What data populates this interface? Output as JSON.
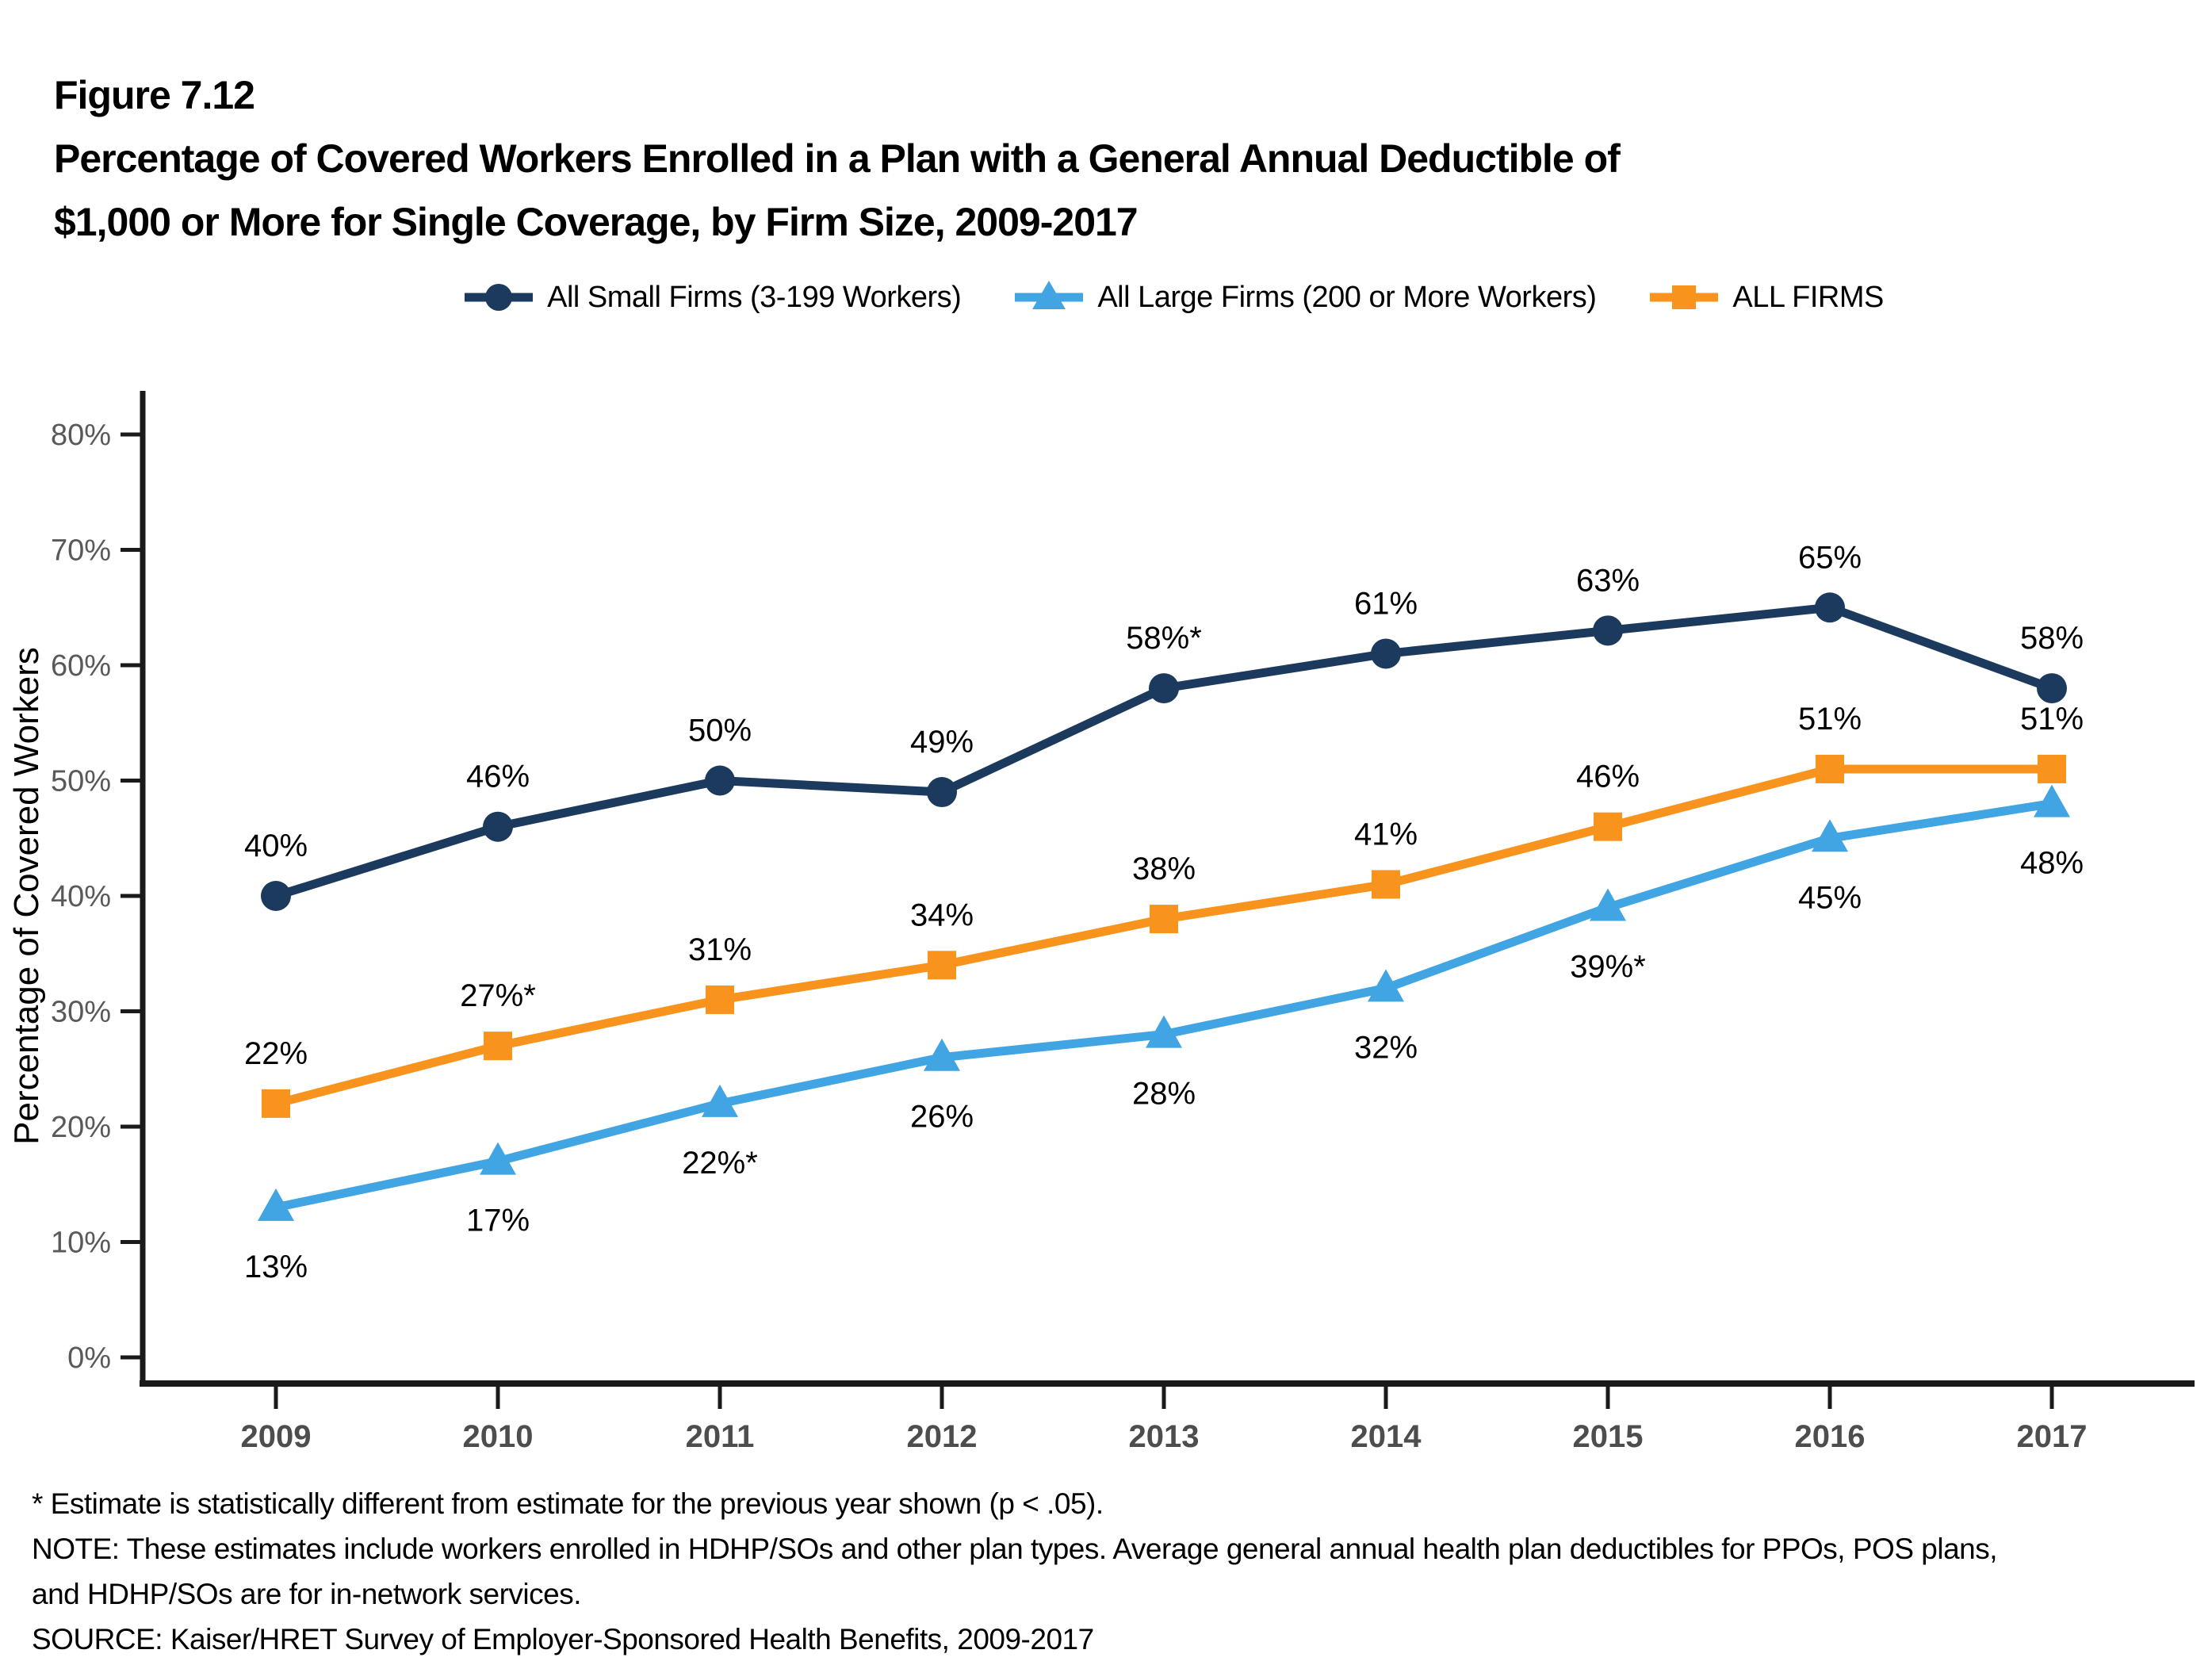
{
  "figure": {
    "label": "Figure 7.12",
    "title_line1": "Percentage of Covered Workers Enrolled in a Plan with a General Annual Deductible of",
    "title_line2": "$1,000 or More for Single Coverage, by Firm Size, 2009-2017"
  },
  "legend": [
    {
      "label": "All Small Firms (3-199 Workers)",
      "marker": "circle",
      "color": "#1b3a5d"
    },
    {
      "label": "All Large Firms (200 or More Workers)",
      "marker": "triangle",
      "color": "#41a4e3"
    },
    {
      "label": "ALL FIRMS",
      "marker": "square",
      "color": "#f8941d"
    }
  ],
  "chart_data": {
    "type": "line",
    "x": [
      2009,
      2010,
      2011,
      2012,
      2013,
      2014,
      2015,
      2016,
      2017
    ],
    "ylabel": "Percentage of Covered Workers",
    "ylim": [
      0,
      80
    ],
    "ytick_step": 10,
    "ytick_suffix": "%",
    "grid": false,
    "legend_position": "top",
    "series": [
      {
        "name": "All Small Firms (3-199 Workers)",
        "color": "#1b3a5d",
        "marker": "circle",
        "values": [
          40,
          46,
          50,
          49,
          58,
          61,
          63,
          65,
          58
        ],
        "labels": [
          "40%",
          "46%",
          "50%",
          "49%",
          "58%*",
          "61%",
          "63%",
          "65%",
          "58%"
        ],
        "label_position": "above"
      },
      {
        "name": "ALL FIRMS",
        "color": "#f8941d",
        "marker": "square",
        "values": [
          22,
          27,
          31,
          34,
          38,
          41,
          46,
          51,
          51
        ],
        "labels": [
          "22%",
          "27%*",
          "31%",
          "34%",
          "38%",
          "41%",
          "46%",
          "51%",
          "51%"
        ],
        "label_position": "above"
      },
      {
        "name": "All Large Firms (200 or More Workers)",
        "color": "#41a4e3",
        "marker": "triangle",
        "values": [
          13,
          17,
          22,
          26,
          28,
          32,
          39,
          45,
          48
        ],
        "labels": [
          "13%",
          "17%",
          "22%*",
          "26%",
          "28%",
          "32%",
          "39%*",
          "45%",
          "48%"
        ],
        "label_position": "below"
      }
    ]
  },
  "footnotes": {
    "asterisk": "* Estimate is statistically different from estimate for the previous year shown (p < .05).",
    "note_line1": "NOTE: These estimates include workers enrolled in HDHP/SOs and other plan types. Average general annual health plan deductibles for PPOs, POS plans,",
    "note_line2": "and HDHP/SOs are for in-network services.",
    "source": "SOURCE: Kaiser/HRET Survey of Employer-Sponsored Health Benefits, 2009-2017"
  }
}
